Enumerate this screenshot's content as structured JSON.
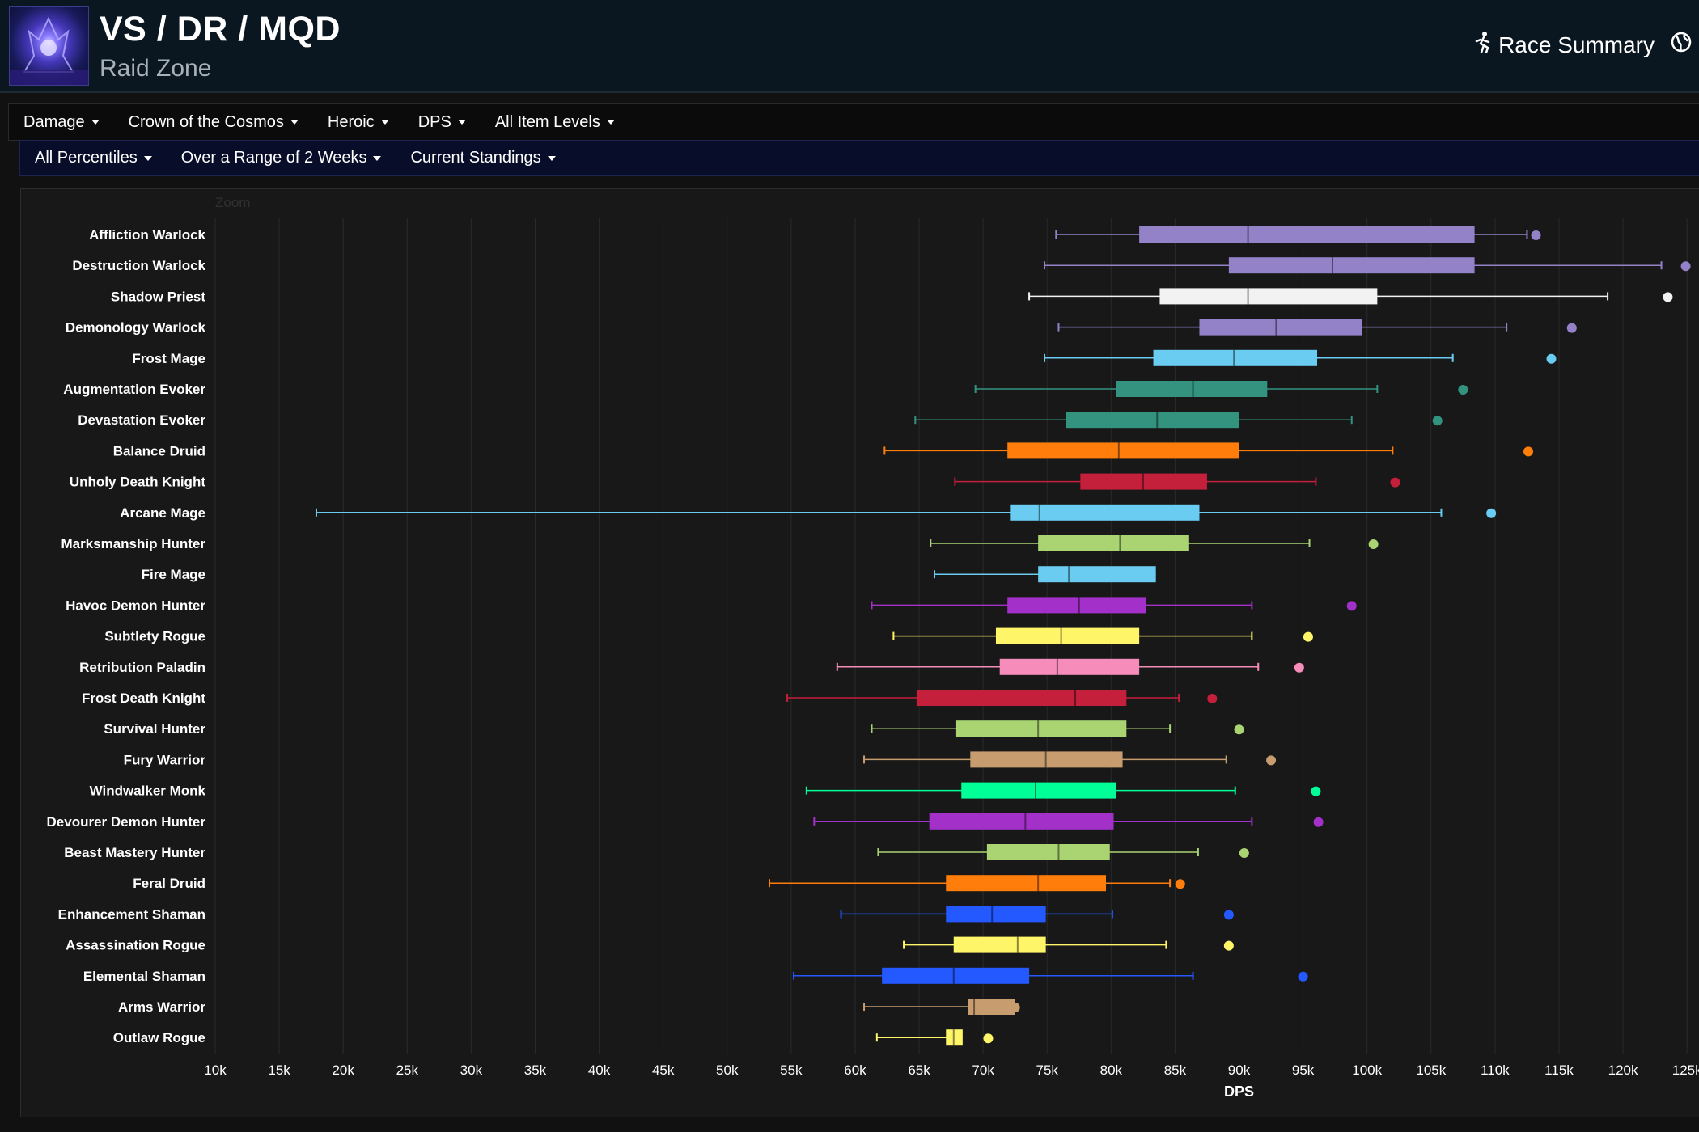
{
  "header": {
    "title": "VS / DR / MQD",
    "subtitle": "Raid Zone",
    "race_summary_label": "Race Summary",
    "logo_icon": "raid-logo-icon",
    "race_icon": "running-person-icon",
    "globe_icon": "globe-icon"
  },
  "filters_row1": [
    {
      "label": "Damage"
    },
    {
      "label": "Crown of the Cosmos"
    },
    {
      "label": "Heroic"
    },
    {
      "label": "DPS"
    },
    {
      "label": "All Item Levels"
    }
  ],
  "filters_row2": [
    {
      "label": "All Percentiles"
    },
    {
      "label": "Over a Range of 2 Weeks"
    },
    {
      "label": "Current Standings"
    }
  ],
  "chart_data": {
    "type": "boxplot",
    "orientation": "horizontal",
    "zoom_label": "Zoom",
    "xlabel": "DPS",
    "xlim": [
      10000,
      126000
    ],
    "xticks": [
      10000,
      15000,
      20000,
      25000,
      30000,
      35000,
      40000,
      45000,
      50000,
      55000,
      60000,
      65000,
      70000,
      75000,
      80000,
      85000,
      90000,
      95000,
      100000,
      105000,
      110000,
      115000,
      120000,
      125000
    ],
    "xtick_labels": [
      "10k",
      "15k",
      "20k",
      "25k",
      "30k",
      "35k",
      "40k",
      "45k",
      "50k",
      "55k",
      "60k",
      "65k",
      "70k",
      "75k",
      "80k",
      "85k",
      "90k",
      "95k",
      "100k",
      "105k",
      "110k",
      "115k",
      "120k",
      "125k"
    ],
    "series": [
      {
        "name": "Affliction Warlock",
        "color": "#9482c9",
        "min": 75700,
        "q1": 82200,
        "median": 90700,
        "q3": 108400,
        "max": 112500,
        "max_point": 113200
      },
      {
        "name": "Destruction Warlock",
        "color": "#9482c9",
        "min": 74800,
        "q1": 89200,
        "median": 97300,
        "q3": 108400,
        "max": 123000,
        "max_point": 124900
      },
      {
        "name": "Shadow Priest",
        "color": "#f2f2f2",
        "min": 73600,
        "q1": 83800,
        "median": 90700,
        "q3": 100800,
        "max": 118800,
        "max_point": 123500
      },
      {
        "name": "Demonology Warlock",
        "color": "#9482c9",
        "min": 75900,
        "q1": 86900,
        "median": 92900,
        "q3": 99600,
        "max": 110900,
        "max_point": 116000
      },
      {
        "name": "Frost Mage",
        "color": "#69ccf0",
        "min": 74800,
        "q1": 83300,
        "median": 89600,
        "q3": 96100,
        "max": 106700,
        "max_point": 114400
      },
      {
        "name": "Augmentation Evoker",
        "color": "#33937f",
        "min": 69400,
        "q1": 80400,
        "median": 86400,
        "q3": 92200,
        "max": 100800,
        "max_point": 107500
      },
      {
        "name": "Devastation Evoker",
        "color": "#33937f",
        "min": 64700,
        "q1": 76500,
        "median": 83600,
        "q3": 90000,
        "max": 98800,
        "max_point": 105500
      },
      {
        "name": "Balance Druid",
        "color": "#ff7d0a",
        "min": 62300,
        "q1": 71900,
        "median": 80600,
        "q3": 90000,
        "max": 102000,
        "max_point": 112600
      },
      {
        "name": "Unholy Death Knight",
        "color": "#c41f3b",
        "min": 67800,
        "q1": 77600,
        "median": 82500,
        "q3": 87500,
        "max": 96000,
        "max_point": 102200
      },
      {
        "name": "Arcane Mage",
        "color": "#69ccf0",
        "min": 17900,
        "q1": 72100,
        "median": 74400,
        "q3": 86900,
        "max": 105800,
        "max_point": 109700
      },
      {
        "name": "Marksmanship Hunter",
        "color": "#aad372",
        "min": 65900,
        "q1": 74300,
        "median": 80700,
        "q3": 86100,
        "max": 95500,
        "max_point": 100500
      },
      {
        "name": "Fire Mage",
        "color": "#69ccf0",
        "min": 66200,
        "q1": 74300,
        "median": 76700,
        "q3": 83500,
        "max": null,
        "max_point": null
      },
      {
        "name": "Havoc Demon Hunter",
        "color": "#a330c9",
        "min": 61300,
        "q1": 71900,
        "median": 77500,
        "q3": 82700,
        "max": 91000,
        "max_point": 98800
      },
      {
        "name": "Subtlety Rogue",
        "color": "#fff569",
        "min": 63000,
        "q1": 71000,
        "median": 76100,
        "q3": 82200,
        "max": 91000,
        "max_point": 95400
      },
      {
        "name": "Retribution Paladin",
        "color": "#f58cba",
        "min": 58600,
        "q1": 71300,
        "median": 75800,
        "q3": 82200,
        "max": 91500,
        "max_point": 94700
      },
      {
        "name": "Frost Death Knight",
        "color": "#c41f3b",
        "min": 54700,
        "q1": 64800,
        "median": 77200,
        "q3": 81200,
        "max": 85300,
        "max_point": 87900
      },
      {
        "name": "Survival Hunter",
        "color": "#aad372",
        "min": 61300,
        "q1": 67900,
        "median": 74300,
        "q3": 81200,
        "max": 84600,
        "max_point": 90000
      },
      {
        "name": "Fury Warrior",
        "color": "#c79c6e",
        "min": 60700,
        "q1": 69000,
        "median": 74900,
        "q3": 80900,
        "max": 89000,
        "max_point": 92500
      },
      {
        "name": "Windwalker Monk",
        "color": "#00ff96",
        "min": 56200,
        "q1": 68300,
        "median": 74100,
        "q3": 80400,
        "max": 89700,
        "max_point": 96000
      },
      {
        "name": "Devourer Demon Hunter",
        "color": "#a330c9",
        "min": 56800,
        "q1": 65800,
        "median": 73300,
        "q3": 80200,
        "max": 91000,
        "max_point": 96200
      },
      {
        "name": "Beast Mastery Hunter",
        "color": "#aad372",
        "min": 61800,
        "q1": 70300,
        "median": 75900,
        "q3": 79900,
        "max": 86800,
        "max_point": 90400
      },
      {
        "name": "Feral Druid",
        "color": "#ff7d0a",
        "min": 53300,
        "q1": 67100,
        "median": 74300,
        "q3": 79600,
        "max": 84600,
        "max_point": 85400
      },
      {
        "name": "Enhancement Shaman",
        "color": "#2459ff",
        "min": 58900,
        "q1": 67100,
        "median": 70700,
        "q3": 74900,
        "max": 80100,
        "max_point": 89200
      },
      {
        "name": "Assassination Rogue",
        "color": "#fff569",
        "min": 63800,
        "q1": 67700,
        "median": 72700,
        "q3": 74900,
        "max": 84300,
        "max_point": 89200
      },
      {
        "name": "Elemental Shaman",
        "color": "#2459ff",
        "min": 55200,
        "q1": 62100,
        "median": 67700,
        "q3": 73600,
        "max": 86400,
        "max_point": 95000
      },
      {
        "name": "Arms Warrior",
        "color": "#c79c6e",
        "min": 60700,
        "q1": 68800,
        "median": 69300,
        "q3": 72500,
        "max": null,
        "max_point": 72500
      },
      {
        "name": "Outlaw Rogue",
        "color": "#fff569",
        "min": 61700,
        "q1": 67100,
        "median": 67700,
        "q3": 68400,
        "max": null,
        "max_point": 70400
      }
    ]
  }
}
